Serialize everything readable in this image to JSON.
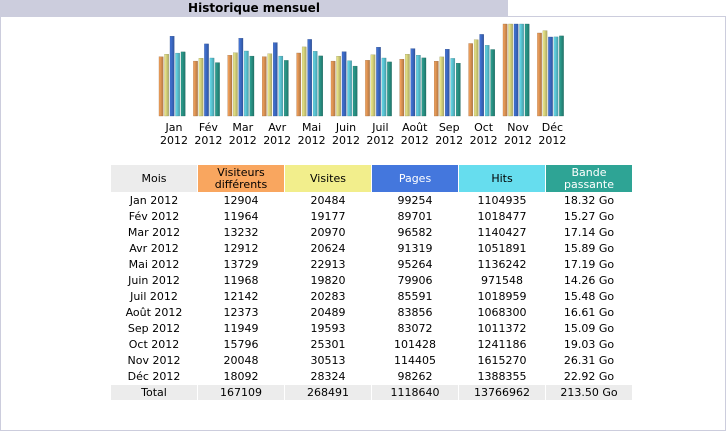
{
  "title": "Historique mensuel",
  "colors": {
    "visitors": "#f9a65f",
    "visits": "#f2ee8c",
    "pages": "#4477dd",
    "hits": "#66ddee",
    "bandwidth": "#2ea495",
    "header_gray": "#ececec",
    "frame": "#cccddd"
  },
  "chart_data": {
    "type": "bar",
    "categories": [
      [
        "Jan",
        "2012"
      ],
      [
        "Fév",
        "2012"
      ],
      [
        "Mar",
        "2012"
      ],
      [
        "Avr",
        "2012"
      ],
      [
        "Mai",
        "2012"
      ],
      [
        "Juin",
        "2012"
      ],
      [
        "Juil",
        "2012"
      ],
      [
        "Août",
        "2012"
      ],
      [
        "Sep",
        "2012"
      ],
      [
        "Oct",
        "2012"
      ],
      [
        "Nov",
        "2012"
      ],
      [
        "Déc",
        "2012"
      ]
    ],
    "series": [
      {
        "name": "Visiteurs différents",
        "color": "#f9a65f",
        "values": [
          12904,
          11964,
          13232,
          12912,
          13729,
          11968,
          12142,
          12373,
          11949,
          15796,
          20048,
          18092
        ]
      },
      {
        "name": "Visites",
        "color": "#f2ee8c",
        "values": [
          20484,
          19177,
          20970,
          20624,
          22913,
          19820,
          20283,
          20489,
          19593,
          25301,
          30513,
          28324
        ]
      },
      {
        "name": "Pages",
        "color": "#4477dd",
        "values": [
          99254,
          89701,
          96582,
          91319,
          95264,
          79906,
          85591,
          83856,
          83072,
          101428,
          114405,
          98262
        ]
      },
      {
        "name": "Hits",
        "color": "#66ddee",
        "values": [
          1104935,
          1018477,
          1140427,
          1051891,
          1136242,
          971548,
          1018959,
          1068300,
          1011372,
          1241186,
          1615270,
          1388355
        ]
      },
      {
        "name": "Bande passante",
        "color": "#2ea495",
        "values": [
          18.32,
          15.27,
          17.14,
          15.89,
          17.19,
          14.26,
          15.48,
          16.61,
          15.09,
          19.03,
          26.31,
          22.92
        ]
      }
    ]
  },
  "table": {
    "headers": {
      "mois": "Mois",
      "visiteurs": "Visiteurs différents",
      "visites": "Visites",
      "pages": "Pages",
      "hits": "Hits",
      "bande": "Bande passante"
    },
    "rows": [
      {
        "mois": "Jan 2012",
        "visiteurs": "12904",
        "visites": "20484",
        "pages": "99254",
        "hits": "1104935",
        "bande": "18.32 Go"
      },
      {
        "mois": "Fév 2012",
        "visiteurs": "11964",
        "visites": "19177",
        "pages": "89701",
        "hits": "1018477",
        "bande": "15.27 Go"
      },
      {
        "mois": "Mar 2012",
        "visiteurs": "13232",
        "visites": "20970",
        "pages": "96582",
        "hits": "1140427",
        "bande": "17.14 Go"
      },
      {
        "mois": "Avr 2012",
        "visiteurs": "12912",
        "visites": "20624",
        "pages": "91319",
        "hits": "1051891",
        "bande": "15.89 Go"
      },
      {
        "mois": "Mai 2012",
        "visiteurs": "13729",
        "visites": "22913",
        "pages": "95264",
        "hits": "1136242",
        "bande": "17.19 Go"
      },
      {
        "mois": "Juin 2012",
        "visiteurs": "11968",
        "visites": "19820",
        "pages": "79906",
        "hits": "971548",
        "bande": "14.26 Go"
      },
      {
        "mois": "Juil 2012",
        "visiteurs": "12142",
        "visites": "20283",
        "pages": "85591",
        "hits": "1018959",
        "bande": "15.48 Go"
      },
      {
        "mois": "Août 2012",
        "visiteurs": "12373",
        "visites": "20489",
        "pages": "83856",
        "hits": "1068300",
        "bande": "16.61 Go"
      },
      {
        "mois": "Sep 2012",
        "visiteurs": "11949",
        "visites": "19593",
        "pages": "83072",
        "hits": "1011372",
        "bande": "15.09 Go"
      },
      {
        "mois": "Oct 2012",
        "visiteurs": "15796",
        "visites": "25301",
        "pages": "101428",
        "hits": "1241186",
        "bande": "19.03 Go"
      },
      {
        "mois": "Nov 2012",
        "visiteurs": "20048",
        "visites": "30513",
        "pages": "114405",
        "hits": "1615270",
        "bande": "26.31 Go"
      },
      {
        "mois": "Déc 2012",
        "visiteurs": "18092",
        "visites": "28324",
        "pages": "98262",
        "hits": "1388355",
        "bande": "22.92 Go"
      }
    ],
    "total": {
      "mois": "Total",
      "visiteurs": "167109",
      "visites": "268491",
      "pages": "1118640",
      "hits": "13766962",
      "bande": "213.50 Go"
    }
  }
}
